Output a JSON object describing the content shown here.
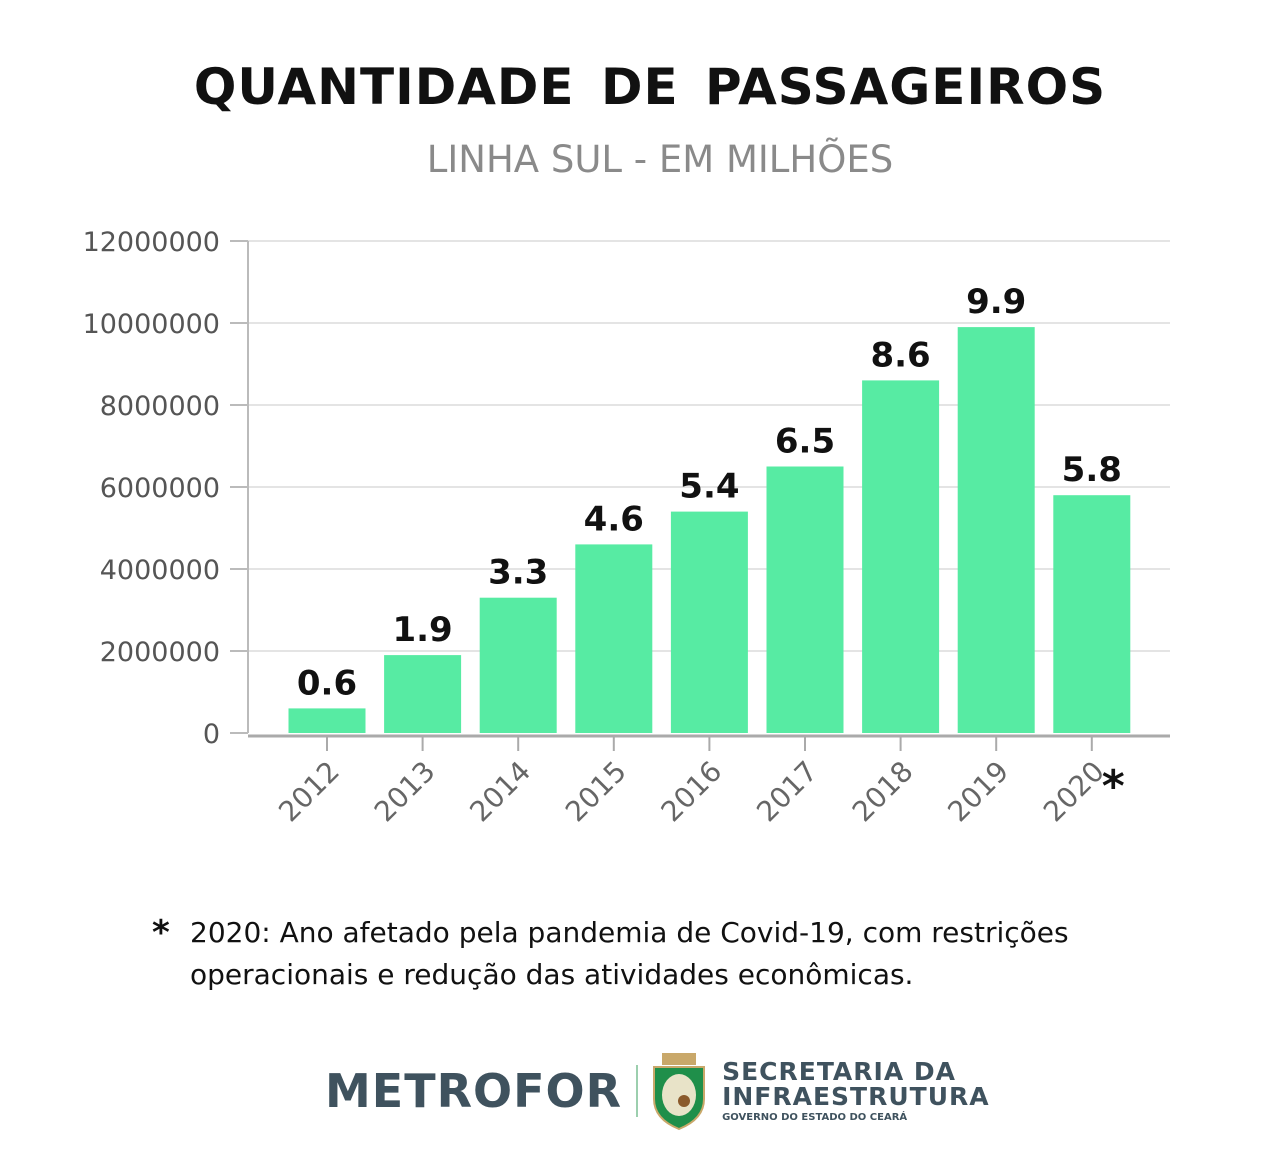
{
  "chart_data": {
    "type": "bar",
    "title": "QUANTIDADE DE PASSAGEIROS",
    "subtitle": "LINHA SUL - EM MILHÕES",
    "categories": [
      "2012",
      "2013",
      "2014",
      "2015",
      "2016",
      "2017",
      "2018",
      "2019",
      "2020"
    ],
    "values": [
      600000,
      1900000,
      3300000,
      4600000,
      5400000,
      6500000,
      8600000,
      9900000,
      5800000
    ],
    "data_labels": [
      "0.6",
      "1.9",
      "3.3",
      "4.6",
      "5.4",
      "6.5",
      "8.6",
      "9.9",
      "5.8"
    ],
    "y_ticks": [
      "0",
      "2000000",
      "4000000",
      "6000000",
      "8000000",
      "10000000",
      "12000000"
    ],
    "ylim": [
      0,
      12000000
    ],
    "grid": true,
    "bar_color": "#57EBA3",
    "annotation_mark": "*",
    "annotated_category": "2020"
  },
  "note": {
    "star": "*",
    "text": "2020: Ano afetado pela pandemia de Covid-19, com restrições operacionais e redução das atividades econômicas."
  },
  "footer": {
    "metrofor": "METROFOR",
    "secretaria_line1": "SECRETARIA DA",
    "secretaria_line2": "INFRAESTRUTURA",
    "governo": "GOVERNO DO ESTADO DO CEARÁ"
  }
}
